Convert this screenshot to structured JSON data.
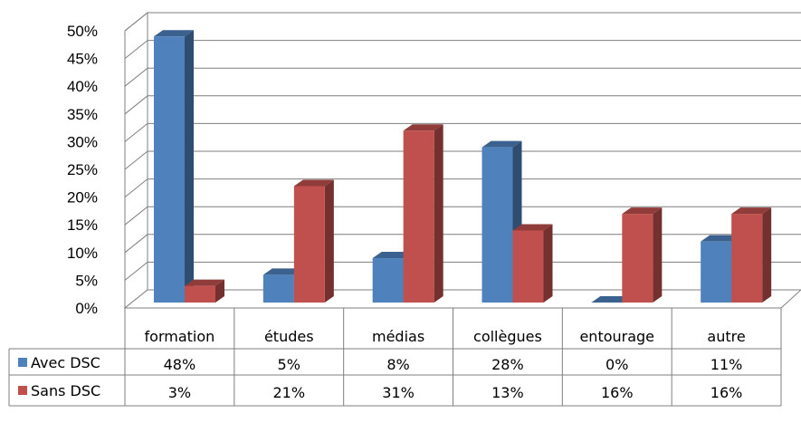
{
  "chart_data": {
    "type": "bar",
    "categories": [
      "formation",
      "études",
      "médias",
      "collègues",
      "entourage",
      "autre"
    ],
    "series": [
      {
        "name": "Avec DSC",
        "values": [
          48,
          5,
          8,
          28,
          0,
          11
        ],
        "labels": [
          "48%",
          "5%",
          "8%",
          "28%",
          "0%",
          "11%"
        ],
        "color": "#4f81bd"
      },
      {
        "name": "Sans DSC",
        "values": [
          3,
          21,
          31,
          13,
          16,
          16
        ],
        "labels": [
          "3%",
          "21%",
          "31%",
          "13%",
          "16%",
          "16%"
        ],
        "color": "#c0504d"
      }
    ],
    "ylim": [
      0,
      50
    ],
    "yticks": [
      "0%",
      "5%",
      "10%",
      "15%",
      "20%",
      "25%",
      "30%",
      "35%",
      "40%",
      "45%",
      "50%"
    ],
    "grid": true,
    "three_d": true,
    "legend": "data-table"
  }
}
